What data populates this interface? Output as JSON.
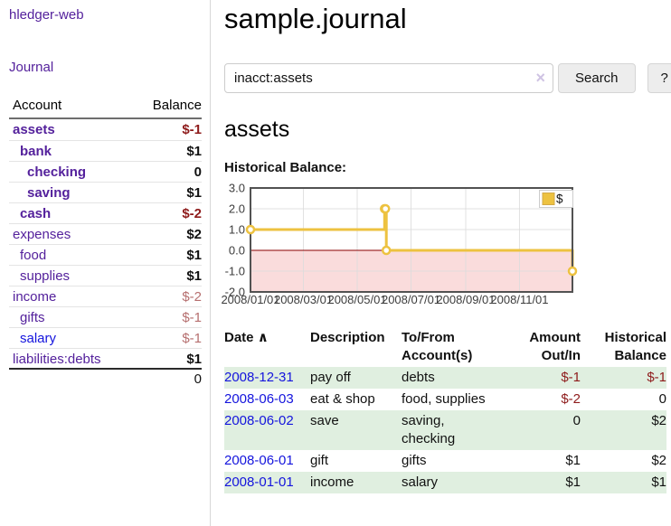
{
  "app": {
    "title": "hledger-web",
    "nav_journal": "Journal"
  },
  "colors": {
    "link_purple": "#54219c",
    "link_blue": "#1414dd",
    "negative_dark": "#8e1b1b",
    "negative_light": "#b66f6f",
    "row_green": "#e0efe0",
    "series_gold": "#EDC240"
  },
  "sidebar": {
    "header": {
      "account": "Account",
      "balance": "Balance"
    },
    "accounts": [
      {
        "name": "assets",
        "depth": 1,
        "bold": true,
        "balance": "$-1",
        "balance_color": "negative"
      },
      {
        "name": "bank",
        "depth": 2,
        "bold": true,
        "balance": "$1",
        "balance_color": "normal"
      },
      {
        "name": "checking",
        "depth": 3,
        "bold": true,
        "balance": "0",
        "balance_color": "normal"
      },
      {
        "name": "saving",
        "depth": 3,
        "bold": true,
        "balance": "$1",
        "balance_color": "normal"
      },
      {
        "name": "cash",
        "depth": 2,
        "bold": true,
        "balance": "$-2",
        "balance_color": "negative"
      },
      {
        "name": "expenses",
        "depth": 1,
        "bold": false,
        "balance": "$2",
        "balance_color": "normal"
      },
      {
        "name": "food",
        "depth": 2,
        "bold": false,
        "balance": "$1",
        "balance_color": "normal"
      },
      {
        "name": "supplies",
        "depth": 2,
        "bold": false,
        "balance": "$1",
        "balance_color": "normal"
      },
      {
        "name": "income",
        "depth": 1,
        "bold": false,
        "balance": "$-2",
        "balance_color": "negative-light"
      },
      {
        "name": "gifts",
        "depth": 2,
        "bold": false,
        "balance": "$-1",
        "balance_color": "negative-light"
      },
      {
        "name": "salary",
        "depth": 2,
        "bold": false,
        "link_style": "unvisited",
        "balance": "$-1",
        "balance_color": "negative-light"
      },
      {
        "name": "liabilities:debts",
        "depth": 1,
        "bold": false,
        "balance": "$1",
        "balance_color": "normal"
      }
    ],
    "total": "0"
  },
  "header": {
    "title": "sample.journal"
  },
  "search": {
    "value": "inacct:assets",
    "clear_label": "×",
    "button_label": "Search",
    "help_label": "?"
  },
  "main": {
    "heading": "assets",
    "chart_label": "Historical Balance:"
  },
  "chart_data": {
    "type": "line",
    "title": "Historical Balance:",
    "x_ticks": [
      "2008/01/01",
      "2008/03/01",
      "2008/05/01",
      "2008/07/01",
      "2008/09/01",
      "2008/11/01"
    ],
    "y_ticks": [
      "3.0",
      "2.0",
      "1.0",
      "0.0",
      "-1.0",
      "-2.0"
    ],
    "ylim": [
      -2,
      3
    ],
    "xlim": [
      "2008-01-01",
      "2008-12-31"
    ],
    "grid": true,
    "legend": {
      "label": "$",
      "position": "top-right"
    },
    "series": [
      {
        "name": "$",
        "color": "#EDC240",
        "steps": true,
        "points": [
          {
            "x": "2008-01-01",
            "y": 1
          },
          {
            "x": "2008-06-01",
            "y": 2
          },
          {
            "x": "2008-06-02",
            "y": 2
          },
          {
            "x": "2008-06-03",
            "y": 0
          },
          {
            "x": "2008-12-31",
            "y": -1
          }
        ]
      }
    ],
    "markings": {
      "negative_region_fill": "#fadcdc",
      "zero_line_color": "#8b0000"
    }
  },
  "register": {
    "headers": {
      "date": "Date",
      "sort_arrow": "∧",
      "description": "Description",
      "tofrom": "To/From\nAccount(s)",
      "amount": "Amount\nOut/In",
      "balance": "Historical\nBalance"
    },
    "rows": [
      {
        "date": "2008-12-31",
        "description": "pay off",
        "accounts": "debts",
        "amount": "$-1",
        "amount_neg": true,
        "balance": "$-1",
        "balance_neg": true,
        "shaded": true
      },
      {
        "date": "2008-06-03",
        "description": "eat & shop",
        "accounts": "food, supplies",
        "amount": "$-2",
        "amount_neg": true,
        "balance": "0",
        "balance_neg": false,
        "shaded": false
      },
      {
        "date": "2008-06-02",
        "description": "save",
        "accounts": "saving,\nchecking",
        "amount": "0",
        "amount_neg": false,
        "balance": "$2",
        "balance_neg": false,
        "shaded": true
      },
      {
        "date": "2008-06-01",
        "description": "gift",
        "accounts": "gifts",
        "amount": "$1",
        "amount_neg": false,
        "balance": "$2",
        "balance_neg": false,
        "shaded": false
      },
      {
        "date": "2008-01-01",
        "description": "income",
        "accounts": "salary",
        "amount": "$1",
        "amount_neg": false,
        "balance": "$1",
        "balance_neg": false,
        "shaded": true
      }
    ]
  }
}
